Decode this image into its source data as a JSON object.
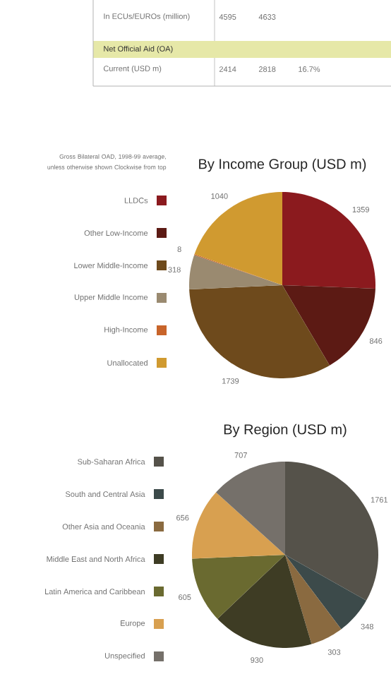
{
  "chart_data": [
    {
      "type": "other",
      "annotations": [
        "In ECUs/EUROs (million)",
        "4595",
        "4633",
        "Net Official Aid (OA)",
        "Current (USD m)",
        "2414",
        "2818",
        "16.7%"
      ]
    },
    {
      "type": "pie",
      "title": "By Income Group (USD m)",
      "subtitle": "Gross Bilateral OAD, 1998-99 average, unless otherwise shown Clockwise from top",
      "legend": "left",
      "data_labels": true,
      "categories": [
        "LLDCs",
        "Other Low-Income",
        "Lower Middle-Income",
        "Upper Middle Income",
        "High-Income",
        "Unallocated"
      ],
      "values": [
        1359,
        846,
        1739,
        318,
        8,
        1040
      ],
      "colors": [
        "#8b1a1e",
        "#5c1a14",
        "#6e4a1c",
        "#9a8a70",
        "#c8642a",
        "#d09a30"
      ]
    },
    {
      "type": "pie",
      "title": "By Region (USD m)",
      "legend": "left",
      "data_labels": true,
      "categories": [
        "Sub-Saharan Africa",
        "South and Central Asia",
        "Other Asia and Oceania",
        "Middle East and North Africa",
        "Latin America and Caribbean",
        "Europe",
        "Unspecified"
      ],
      "values": [
        1761,
        348,
        303,
        930,
        605,
        656,
        707
      ],
      "colors": [
        "#55524a",
        "#3c4a4a",
        "#8a6a40",
        "#3e3c24",
        "#6a6a30",
        "#d8a050",
        "#75706a"
      ]
    }
  ]
}
